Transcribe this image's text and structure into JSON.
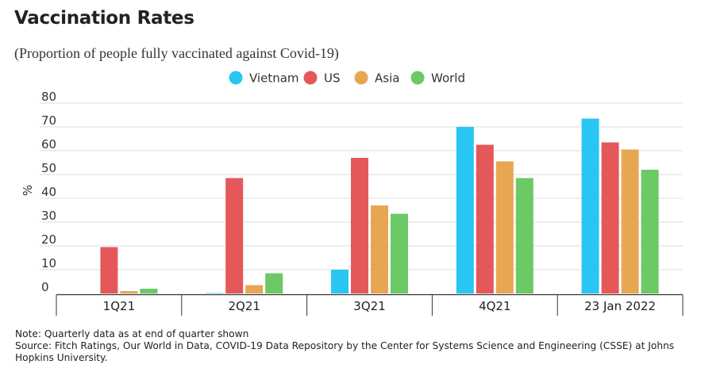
{
  "notes": {
    "note": "Note: Quarterly data as at end of quarter shown",
    "source": "Source: Fitch Ratings,  Our World in Data, COVID-19 Data Repository by the Center for Systems Science and Engineering (CSSE) at Johns Hopkins University."
  },
  "chart_data": {
    "type": "bar",
    "title": "Vaccination Rates",
    "subtitle": "(Proportion of people fully vaccinated against Covid-19)",
    "xlabel": "",
    "ylabel": "%",
    "ylim": [
      0,
      80
    ],
    "yticks": [
      0,
      10,
      20,
      30,
      40,
      50,
      60,
      70,
      80
    ],
    "grid": true,
    "legend_position": "top-center",
    "categories": [
      "1Q21",
      "2Q21",
      "3Q21",
      "4Q21",
      "23 Jan 2022"
    ],
    "series": [
      {
        "name": "Vietnam",
        "color": "#29c6f4",
        "values": [
          0,
          0.2,
          10,
          70,
          73.5
        ]
      },
      {
        "name": "US",
        "color": "#e5585a",
        "values": [
          19.5,
          48.5,
          57,
          62.5,
          63.5
        ]
      },
      {
        "name": "Asia",
        "color": "#e8a653",
        "values": [
          1,
          3.5,
          37,
          55.5,
          60.5
        ]
      },
      {
        "name": "World",
        "color": "#6cc966",
        "values": [
          2,
          8.5,
          33.5,
          48.5,
          52
        ]
      }
    ]
  }
}
